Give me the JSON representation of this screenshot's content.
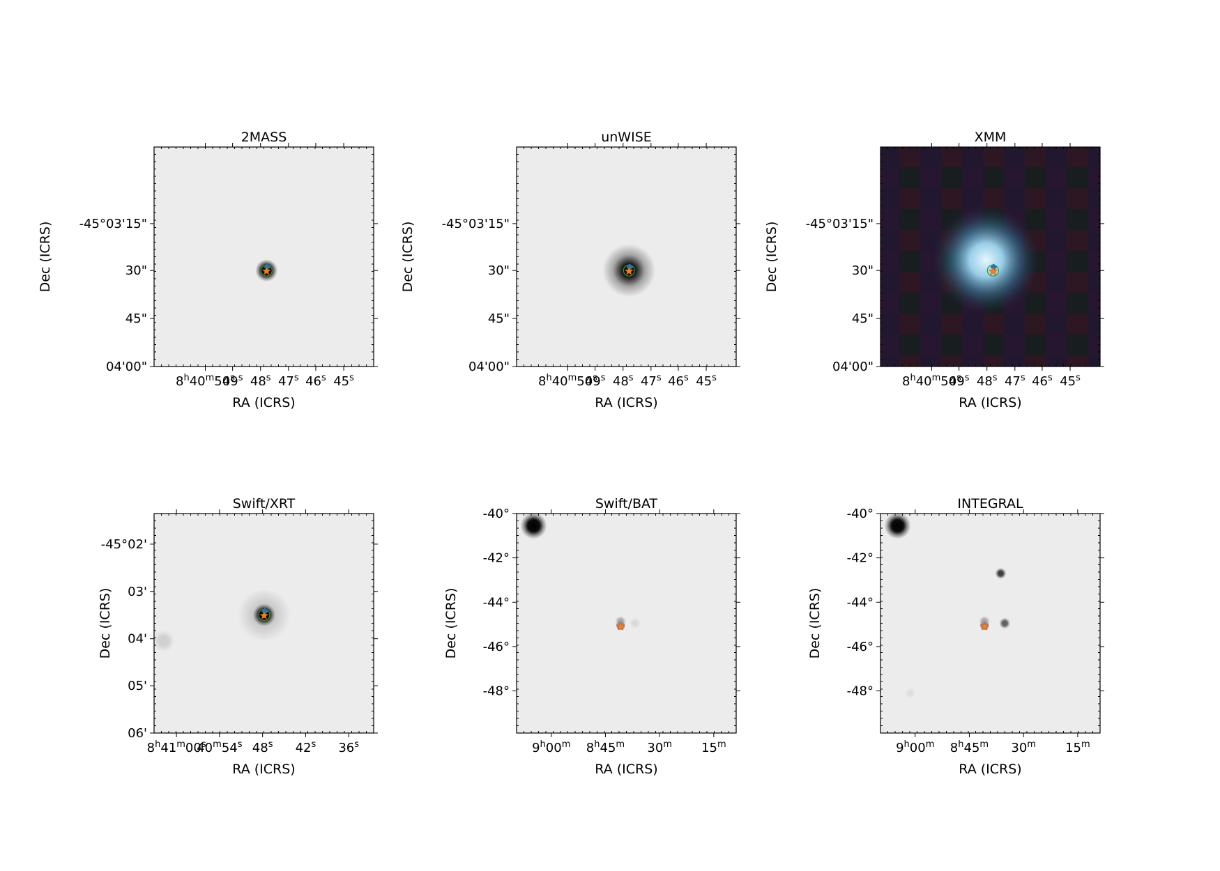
{
  "colors": {
    "star_marker": "#ff7f0e",
    "star_edge": "#d94801",
    "blue_marker": "#1f77b4",
    "green_circle": "#2ca02c",
    "frame": "#000000"
  },
  "panels": [
    {
      "id": "2mass",
      "title": "2MASS",
      "xlabel": "RA (ICRS)",
      "ylabel": "Dec (ICRS)",
      "image": "gray",
      "xticks": [
        {
          "label": "8h40m50s",
          "ra": 130.2083
        },
        {
          "label": "49s",
          "ra": 130.2042
        },
        {
          "label": "48s",
          "ra": 130.2
        },
        {
          "label": "47s",
          "ra": 130.1958
        },
        {
          "label": "46s",
          "ra": 130.1917
        },
        {
          "label": "45s",
          "ra": 130.1875
        }
      ],
      "yticks": [
        {
          "label": "-45°03'15\"",
          "dec": -45.0542
        },
        {
          "label": "30\"",
          "dec": -45.0583
        },
        {
          "label": "45\"",
          "dec": -45.0625
        },
        {
          "label": "04'00\"",
          "dec": -45.0667
        }
      ],
      "sources": [
        {
          "ra": 130.1991,
          "dec": -45.0583,
          "intensity": 1.0,
          "size": "small"
        }
      ]
    },
    {
      "id": "unwise",
      "title": "unWISE",
      "xlabel": "RA (ICRS)",
      "ylabel": "Dec (ICRS)",
      "image": "gray",
      "xticks": [
        {
          "label": "8h40m50s",
          "ra": 130.2083
        },
        {
          "label": "49s",
          "ra": 130.2042
        },
        {
          "label": "48s",
          "ra": 130.2
        },
        {
          "label": "47s",
          "ra": 130.1958
        },
        {
          "label": "46s",
          "ra": 130.1917
        },
        {
          "label": "45s",
          "ra": 130.1875
        }
      ],
      "yticks": [
        {
          "label": "-45°03'15\"",
          "dec": -45.0542
        },
        {
          "label": "30\"",
          "dec": -45.0583
        },
        {
          "label": "45\"",
          "dec": -45.0625
        },
        {
          "label": "04'00\"",
          "dec": -45.0667
        }
      ],
      "sources": [
        {
          "ra": 130.1991,
          "dec": -45.0583,
          "intensity": 1.0,
          "size": "medium"
        }
      ]
    },
    {
      "id": "xmm",
      "title": "XMM",
      "xlabel": "RA (ICRS)",
      "ylabel": "Dec (ICRS)",
      "image": "rgb",
      "xticks": [
        {
          "label": "8h40m50s",
          "ra": 130.2083
        },
        {
          "label": "49s",
          "ra": 130.2042
        },
        {
          "label": "48s",
          "ra": 130.2
        },
        {
          "label": "47s",
          "ra": 130.1958
        },
        {
          "label": "46s",
          "ra": 130.1917
        },
        {
          "label": "45s",
          "ra": 130.1875
        }
      ],
      "yticks": [
        {
          "label": "-45°03'15\"",
          "dec": -45.0542
        },
        {
          "label": "30\"",
          "dec": -45.0583
        },
        {
          "label": "45\"",
          "dec": -45.0625
        },
        {
          "label": "04'00\"",
          "dec": -45.0667
        }
      ],
      "sources": [
        {
          "ra": 130.1991,
          "dec": -45.0583,
          "intensity": 1.0,
          "size": "large"
        }
      ]
    },
    {
      "id": "swift-xrt",
      "title": "Swift/XRT",
      "xlabel": "RA (ICRS)",
      "ylabel": "Dec (ICRS)",
      "image": "gray",
      "xticks": [
        {
          "label": "8h41m00s",
          "ra": 130.25
        },
        {
          "label": "40m54s",
          "ra": 130.225
        },
        {
          "label": "48s",
          "ra": 130.2
        },
        {
          "label": "42s",
          "ra": 130.175
        },
        {
          "label": "36s",
          "ra": 130.15
        }
      ],
      "yticks": [
        {
          "label": "-45°02'",
          "dec": -45.0333
        },
        {
          "label": "03'",
          "dec": -45.05
        },
        {
          "label": "04'",
          "dec": -45.0667
        },
        {
          "label": "05'",
          "dec": -45.0833
        },
        {
          "label": "06'",
          "dec": -45.1
        }
      ],
      "sources": [
        {
          "ra": 130.1991,
          "dec": -45.0583,
          "intensity": 1.0,
          "size": "small"
        },
        {
          "ra": 130.2575,
          "dec": -45.0675,
          "intensity": 0.12,
          "size": "small"
        }
      ]
    },
    {
      "id": "swift-bat",
      "title": "Swift/BAT",
      "xlabel": "RA (ICRS)",
      "ylabel": "Dec (ICRS)",
      "image": "gray",
      "xticks": [
        {
          "label": "9h00m",
          "ra": 135.0
        },
        {
          "label": "8h45m",
          "ra": 131.25
        },
        {
          "label": "30m",
          "ra": 127.5
        },
        {
          "label": "15m",
          "ra": 123.75
        }
      ],
      "yticks": [
        {
          "label": "-40°",
          "dec": -40.0
        },
        {
          "label": "-42°",
          "dec": -42.0
        },
        {
          "label": "-44°",
          "dec": -44.0
        },
        {
          "label": "-46°",
          "dec": -46.0
        },
        {
          "label": "-48°",
          "dec": -48.0
        }
      ],
      "sources": [
        {
          "ra": 136.22,
          "dec": -40.55,
          "intensity": 1.0,
          "size": "medium"
        },
        {
          "ra": 130.2,
          "dec": -44.87,
          "intensity": 0.3,
          "size": "small"
        },
        {
          "ra": 129.2,
          "dec": -44.95,
          "intensity": 0.08,
          "size": "small"
        }
      ]
    },
    {
      "id": "integral",
      "title": "INTEGRAL",
      "xlabel": "RA (ICRS)",
      "ylabel": "Dec (ICRS)",
      "image": "gray",
      "xticks": [
        {
          "label": "9h00m",
          "ra": 135.0
        },
        {
          "label": "8h45m",
          "ra": 131.25
        },
        {
          "label": "30m",
          "ra": 127.5
        },
        {
          "label": "15m",
          "ra": 123.75
        }
      ],
      "yticks": [
        {
          "label": "-40°",
          "dec": -40.0
        },
        {
          "label": "-42°",
          "dec": -42.0
        },
        {
          "label": "-44°",
          "dec": -44.0
        },
        {
          "label": "-46°",
          "dec": -46.0
        },
        {
          "label": "-48°",
          "dec": -48.0
        }
      ],
      "sources": [
        {
          "ra": 136.22,
          "dec": -40.55,
          "intensity": 1.0,
          "size": "medium"
        },
        {
          "ra": 130.2,
          "dec": -44.87,
          "intensity": 0.3,
          "size": "small"
        },
        {
          "ra": 129.08,
          "dec": -42.7,
          "intensity": 0.75,
          "size": "small"
        },
        {
          "ra": 128.8,
          "dec": -44.95,
          "intensity": 0.6,
          "size": "small"
        },
        {
          "ra": 135.35,
          "dec": -48.1,
          "intensity": 0.06,
          "size": "small"
        }
      ]
    }
  ],
  "target": {
    "ra": 130.1991,
    "dec": -45.0583
  }
}
